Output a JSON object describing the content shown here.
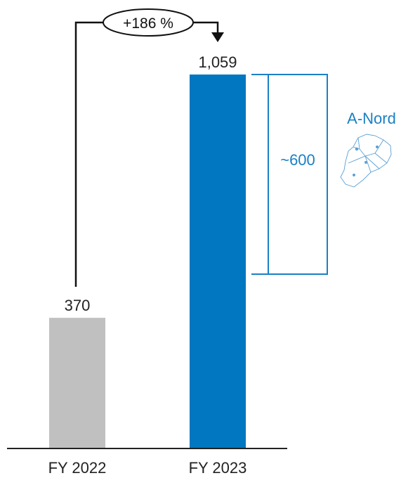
{
  "chart_data": {
    "type": "bar",
    "categories": [
      "FY 2022",
      "FY 2023"
    ],
    "values": [
      370,
      1059
    ],
    "value_labels": [
      "370",
      "1,059"
    ],
    "bar_colors": [
      "#c0c0c0",
      "#0077c0"
    ],
    "ylim": [
      0,
      1150
    ],
    "grid": false,
    "change_annotation": {
      "text": "+186 %",
      "from": "FY 2022",
      "to": "FY 2023"
    },
    "bracket": {
      "label": "~600",
      "from_value": 459,
      "to_value": 1059,
      "color": "#1a80c4"
    },
    "region": {
      "label": "A-Nord",
      "icon": "region-map-icon",
      "color": "#1a80c4"
    }
  }
}
